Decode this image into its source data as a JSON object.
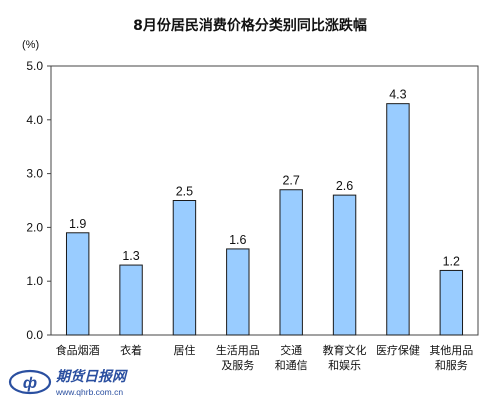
{
  "chart_data": {
    "type": "bar",
    "title": "8月份居民消费价格分类别同比涨跌幅",
    "unit_label": "(%)",
    "categories": [
      [
        "食品烟酒"
      ],
      [
        "衣着"
      ],
      [
        "居住"
      ],
      [
        "生活用品",
        "及服务"
      ],
      [
        "交通",
        "和通信"
      ],
      [
        "教育文化",
        "和娱乐"
      ],
      [
        "医疗保健"
      ],
      [
        "其他用品",
        "和服务"
      ]
    ],
    "values": [
      1.9,
      1.3,
      2.5,
      1.6,
      2.7,
      2.6,
      4.3,
      1.2
    ],
    "value_labels": [
      "1.9",
      "1.3",
      "2.5",
      "1.6",
      "2.7",
      "2.6",
      "4.3",
      "1.2"
    ],
    "ylim": [
      0,
      5
    ],
    "yticks": [
      "0.0",
      "1.0",
      "2.0",
      "3.0",
      "4.0",
      "5.0"
    ],
    "grid": false,
    "bar_color": "#99ccff"
  },
  "watermark": {
    "text": "期货日报网",
    "url": "www.qhrb.com.cn"
  }
}
